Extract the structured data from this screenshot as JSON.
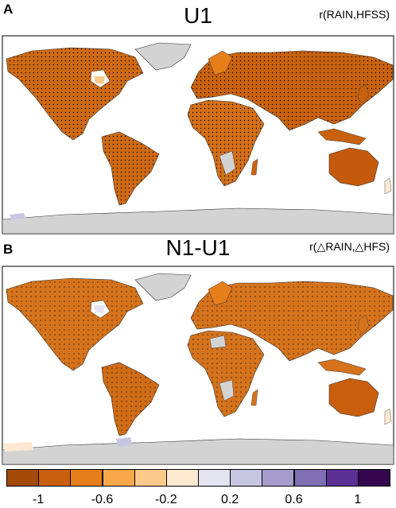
{
  "panels": [
    {
      "letter": "A",
      "title": "U1",
      "variable": "r(RAIN,HFSS)"
    },
    {
      "letter": "B",
      "title": "N1-U1",
      "variable": "r(△RAIN,△HFS)"
    }
  ],
  "colorbar": {
    "colors": [
      "#a34a06",
      "#c95f0c",
      "#e67e1a",
      "#f6a84b",
      "#fbc98a",
      "#fde9cf",
      "#e4e4f1",
      "#c7c6e2",
      "#a59ccb",
      "#7d6fb2",
      "#5b2f94",
      "#34074f"
    ],
    "tick_labels": [
      "-1",
      "-0.6",
      "-0.2",
      "0.2",
      "0.6",
      "1"
    ]
  },
  "colors": {
    "land_masked": "#d3d3d3",
    "stipple": "#000000"
  }
}
